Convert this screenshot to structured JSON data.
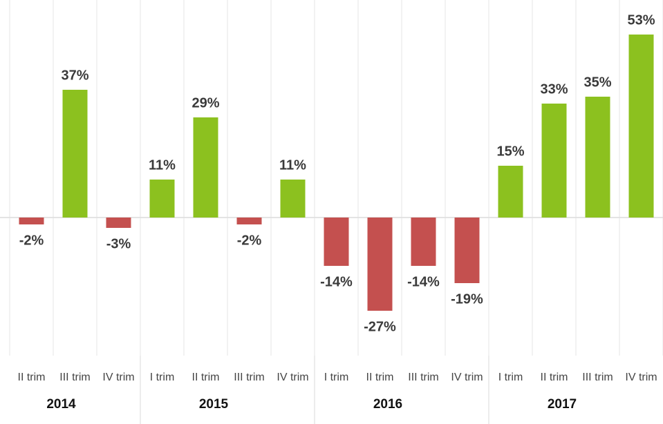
{
  "chart_data": {
    "type": "bar",
    "categories": [
      "II trim",
      "III trim",
      "IV trim",
      "I trim",
      "II trim",
      "III trim",
      "IV trim",
      "I trim",
      "II trim",
      "III trim",
      "IV trim",
      "I trim",
      "II trim",
      "III trim",
      "IV trim"
    ],
    "groups": [
      {
        "name": "2014",
        "span": 3
      },
      {
        "name": "2015",
        "span": 4
      },
      {
        "name": "2016",
        "span": 4
      },
      {
        "name": "2017",
        "span": 4
      }
    ],
    "values": [
      -2,
      37,
      -3,
      11,
      29,
      -2,
      11,
      -14,
      -27,
      -14,
      -19,
      15,
      33,
      35,
      53
    ],
    "value_labels": [
      "-2%",
      "37%",
      "-3%",
      "11%",
      "29%",
      "-2%",
      "11%",
      "-14%",
      "-27%",
      "-14%",
      "-19%",
      "15%",
      "33%",
      "35%",
      "53%"
    ],
    "colors": {
      "positive": "#8cc11f",
      "negative": "#c4504f"
    },
    "ylim": [
      -40,
      63
    ]
  }
}
